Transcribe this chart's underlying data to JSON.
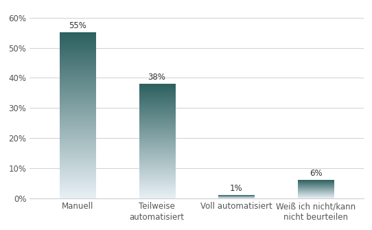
{
  "categories": [
    "Manuell",
    "Teilweise\nautomatisiert",
    "Voll automatisiert",
    "Weiß ich nicht/kann\nnicht beurteilen"
  ],
  "values": [
    55,
    38,
    1,
    6
  ],
  "labels": [
    "55%",
    "38%",
    "1%",
    "6%"
  ],
  "ylim": [
    0,
    63
  ],
  "yticks": [
    0,
    10,
    20,
    30,
    40,
    50,
    60
  ],
  "ytick_labels": [
    "0%",
    "10%",
    "20%",
    "30%",
    "40%",
    "50%",
    "60%"
  ],
  "bar_top_color": "#2d6060",
  "bar_bottom_color": "#e8f0f5",
  "background_color": "#ffffff",
  "label_fontsize": 8.5,
  "tick_fontsize": 8.5,
  "bar_width": 0.45,
  "grid_color": "#d0d0d0"
}
